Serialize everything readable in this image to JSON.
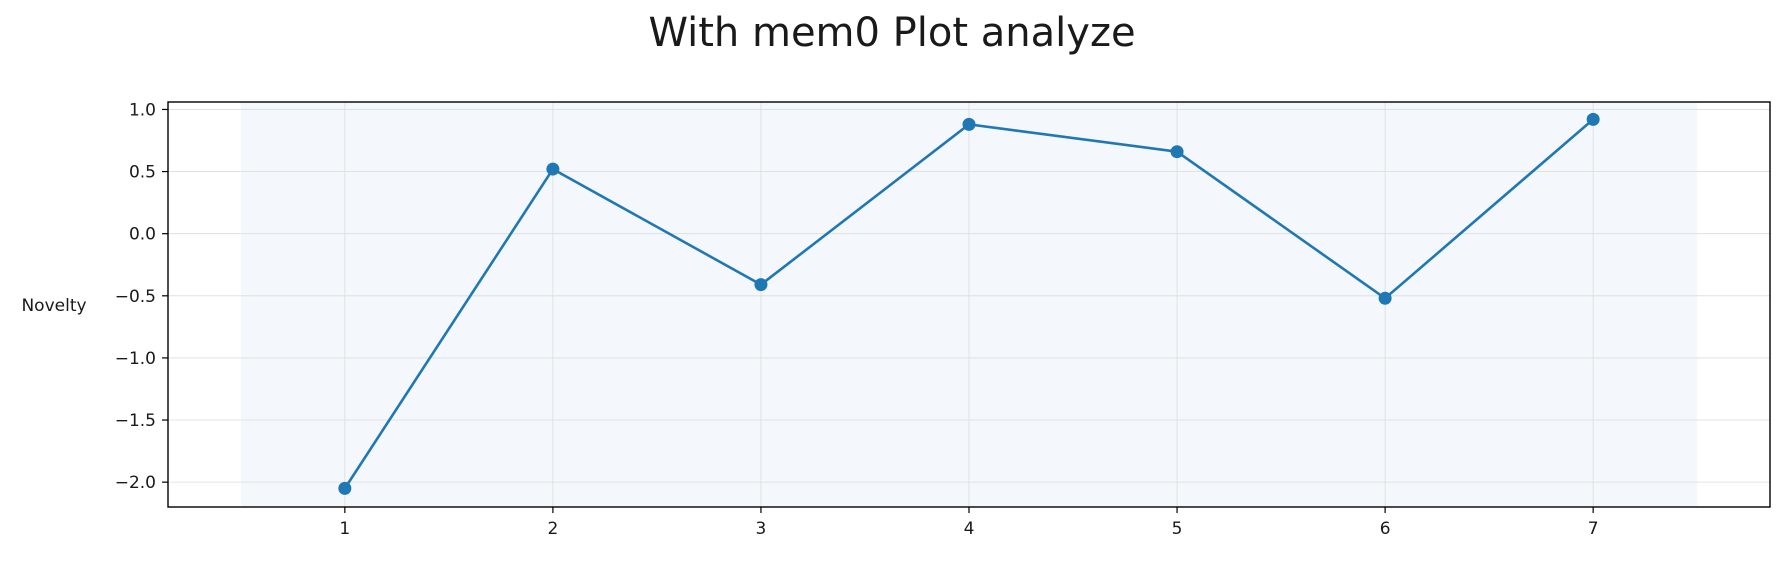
{
  "chart_data": {
    "type": "line",
    "title": "With mem0 Plot analyze",
    "xlabel": "",
    "ylabel": "Novelty",
    "x": [
      1,
      2,
      3,
      4,
      5,
      6,
      7
    ],
    "series": [
      {
        "values": [
          -2.05,
          0.52,
          -0.41,
          0.88,
          0.66,
          -0.52,
          0.92
        ]
      }
    ],
    "xlim": [
      0.15,
      7.85
    ],
    "ylim": [
      -2.2,
      1.06
    ],
    "xticks": [
      "1",
      "2",
      "3",
      "4",
      "5",
      "6",
      "7"
    ],
    "yticks": [
      "1.0",
      "0.5",
      "0.0",
      "−0.5",
      "−1.0",
      "−1.5",
      "−2.0"
    ],
    "ytick_values": [
      1.0,
      0.5,
      0.0,
      -0.5,
      -1.0,
      -1.5,
      -2.0
    ],
    "shaded_span": [
      0.5,
      7.5
    ],
    "grid": true,
    "colors": {
      "line": "#1f77b4",
      "shade": "#f4f8fc",
      "grid": "#dcdcdc",
      "axes": "#000000"
    }
  }
}
